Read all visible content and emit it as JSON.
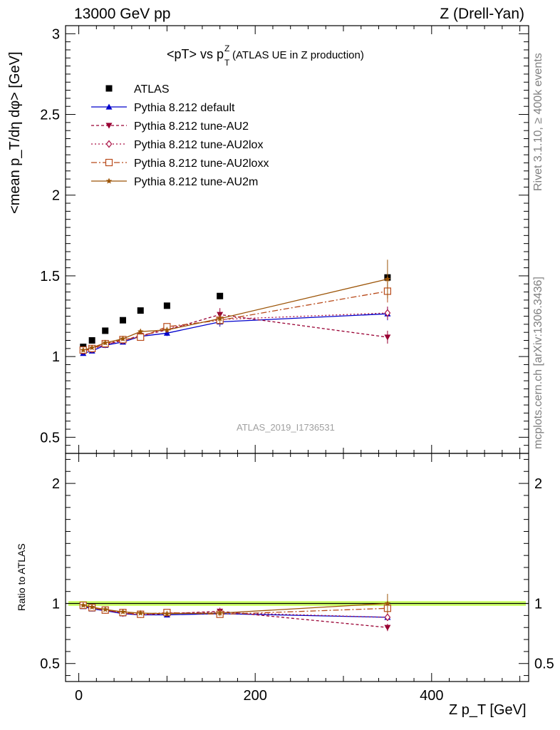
{
  "header": {
    "left": "13000 GeV pp",
    "right": "Z (Drell-Yan)",
    "title_main": "<pT> vs p",
    "title_sup": "Z",
    "title_sub": "T",
    "title_rest": "(ATLAS UE in Z production)",
    "watermark": "ATLAS_2019_I1736531"
  },
  "side_labels": {
    "rivet": "Rivet 3.1.10, ≥ 400k events",
    "mcplots": "mcplots.cern.ch [arXiv:1306.3436]"
  },
  "colors": {
    "data": "#000000",
    "default": "#0000cc",
    "au2": "#990033",
    "au2lox": "#aa1144",
    "au2loxx": "#b84a1a",
    "au2m": "#9c5508",
    "band": "#ccff66"
  },
  "chart_data": [
    {
      "type": "scatter",
      "panel": "main",
      "xlabel": "Z p_T [GeV]",
      "ylabel": "<mean p_T/dη dφ> [GeV]",
      "xlim": [
        -15,
        510
      ],
      "ylim": [
        0.4,
        3.05
      ],
      "yticks": [
        0.5,
        1,
        1.5,
        2,
        2.5,
        3
      ],
      "ytick_labels": [
        "0.5",
        "1",
        "1.5",
        "2",
        "2.5",
        "3"
      ],
      "legend_position": "top-left",
      "x": [
        5,
        15,
        30,
        50,
        70,
        100,
        160,
        350
      ],
      "series": [
        {
          "name": "ATLAS",
          "style": "data",
          "values": [
            1.06,
            1.1,
            1.16,
            1.225,
            1.285,
            1.315,
            1.375,
            1.49
          ]
        },
        {
          "name": "Pythia 8.212 default",
          "style": "default",
          "values": [
            1.02,
            1.035,
            1.07,
            1.09,
            1.125,
            1.145,
            1.215,
            1.265
          ],
          "errors": [
            0.01,
            0.01,
            0.012,
            0.012,
            0.015,
            0.018,
            0.03,
            0.04
          ]
        },
        {
          "name": "Pythia 8.212 tune-AU2",
          "style": "au2",
          "values": [
            1.035,
            1.05,
            1.075,
            1.1,
            1.13,
            1.165,
            1.26,
            1.12
          ],
          "errors": [
            0.01,
            0.01,
            0.012,
            0.012,
            0.015,
            0.018,
            0.04,
            0.04
          ]
        },
        {
          "name": "Pythia 8.212 tune-AU2lox",
          "style": "au2lox",
          "values": [
            1.035,
            1.045,
            1.075,
            1.1,
            1.125,
            1.175,
            1.23,
            1.27
          ],
          "errors": [
            0.01,
            0.01,
            0.012,
            0.012,
            0.015,
            0.018,
            0.03,
            0.04
          ]
        },
        {
          "name": "Pythia 8.212 tune-AU2loxx",
          "style": "au2loxx",
          "values": [
            1.04,
            1.05,
            1.08,
            1.105,
            1.12,
            1.185,
            1.225,
            1.405
          ],
          "errors": [
            0.01,
            0.01,
            0.012,
            0.012,
            0.015,
            0.018,
            0.03,
            0.07
          ]
        },
        {
          "name": "Pythia 8.212 tune-AU2m",
          "style": "au2m",
          "values": [
            1.04,
            1.055,
            1.085,
            1.11,
            1.155,
            1.165,
            1.235,
            1.48
          ],
          "errors": [
            0.01,
            0.01,
            0.012,
            0.012,
            0.015,
            0.018,
            0.03,
            0.12
          ]
        }
      ]
    },
    {
      "type": "scatter",
      "panel": "ratio",
      "xlabel": "Z p_T [GeV]",
      "ylabel": "Ratio to ATLAS",
      "xlim": [
        -15,
        510
      ],
      "ylim": [
        0.35,
        2.25
      ],
      "yticks": [
        0.5,
        1,
        2
      ],
      "ytick_labels": [
        "0.5",
        "1",
        "2"
      ],
      "xticks": [
        0,
        200,
        400
      ],
      "xtick_labels": [
        "0",
        "200",
        "400"
      ],
      "x": [
        5,
        15,
        30,
        50,
        70,
        100,
        160,
        350
      ],
      "series": [
        {
          "name": "Pythia 8.212 default",
          "style": "default",
          "values": [
            0.975,
            0.955,
            0.94,
            0.915,
            0.905,
            0.905,
            0.915,
            0.885
          ],
          "errors": [
            0.01,
            0.01,
            0.012,
            0.012,
            0.015,
            0.018,
            0.025,
            0.03
          ]
        },
        {
          "name": "Pythia 8.212 tune-AU2",
          "style": "au2",
          "values": [
            0.985,
            0.96,
            0.945,
            0.92,
            0.905,
            0.915,
            0.935,
            0.8
          ],
          "errors": [
            0.01,
            0.01,
            0.012,
            0.012,
            0.015,
            0.018,
            0.03,
            0.03
          ]
        },
        {
          "name": "Pythia 8.212 tune-AU2lox",
          "style": "au2lox",
          "values": [
            0.985,
            0.965,
            0.945,
            0.92,
            0.91,
            0.92,
            0.925,
            0.885
          ],
          "errors": [
            0.01,
            0.01,
            0.012,
            0.012,
            0.015,
            0.018,
            0.025,
            0.03
          ]
        },
        {
          "name": "Pythia 8.212 tune-AU2loxx",
          "style": "au2loxx",
          "values": [
            0.985,
            0.965,
            0.945,
            0.925,
            0.91,
            0.925,
            0.91,
            0.96
          ],
          "errors": [
            0.01,
            0.01,
            0.012,
            0.012,
            0.015,
            0.018,
            0.025,
            0.05
          ]
        },
        {
          "name": "Pythia 8.212 tune-AU2m",
          "style": "au2m",
          "values": [
            0.985,
            0.97,
            0.95,
            0.93,
            0.92,
            0.915,
            0.92,
            1.0
          ],
          "errors": [
            0.01,
            0.01,
            0.012,
            0.012,
            0.015,
            0.018,
            0.025,
            0.08
          ]
        }
      ]
    }
  ]
}
